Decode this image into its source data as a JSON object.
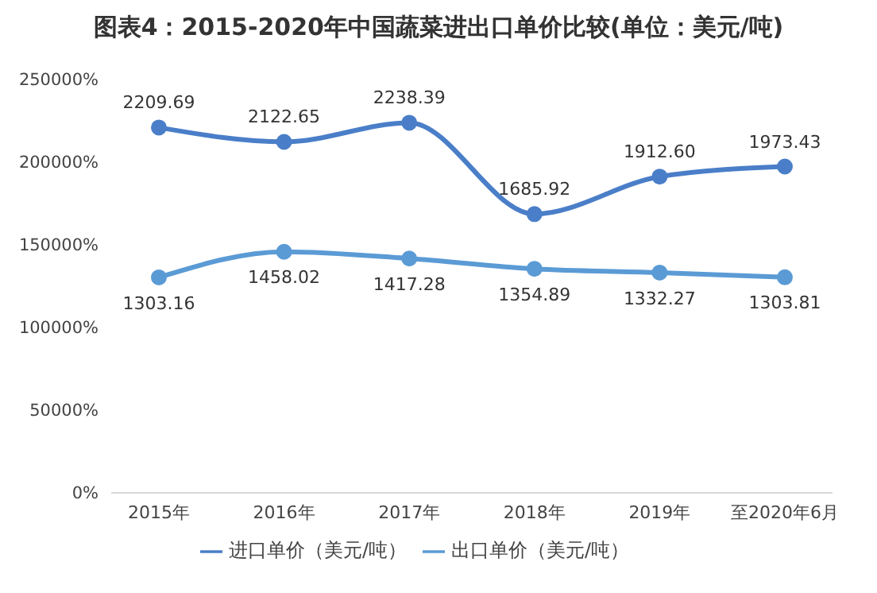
{
  "chart_data": {
    "type": "line",
    "title": "图表4：2015-2020年中国蔬菜进出口单价比较(单位：美元/吨)",
    "categories": [
      "2015年",
      "2016年",
      "2017年",
      "2018年",
      "2019年",
      "至2020年6月"
    ],
    "series": [
      {
        "name": "进口单价（美元/吨）",
        "color": "#4a7ec8",
        "values": [
          2209.69,
          2122.65,
          2238.39,
          1685.92,
          1912.6,
          1973.43
        ],
        "value_labels": [
          "2209.69",
          "2122.65",
          "2238.39",
          "1685.92",
          "1912.60",
          "1973.43"
        ]
      },
      {
        "name": "出口单价（美元/吨）",
        "color": "#5b9bd5",
        "values": [
          1303.16,
          1458.02,
          1417.28,
          1354.89,
          1332.27,
          1303.81
        ],
        "value_labels": [
          "1303.16",
          "1458.02",
          "1417.28",
          "1354.89",
          "1332.27",
          "1303.81"
        ]
      }
    ],
    "ylim": [
      0,
      2500
    ],
    "yticks": [
      {
        "value": 0,
        "label": "0%"
      },
      {
        "value": 500,
        "label": "50000%"
      },
      {
        "value": 1000,
        "label": "100000%"
      },
      {
        "value": 1500,
        "label": "150000%"
      },
      {
        "value": 2000,
        "label": "200000%"
      },
      {
        "value": 2500,
        "label": "250000%"
      }
    ],
    "legend": "bottom",
    "marker": "circle",
    "line_style": "solid",
    "grid": false
  }
}
